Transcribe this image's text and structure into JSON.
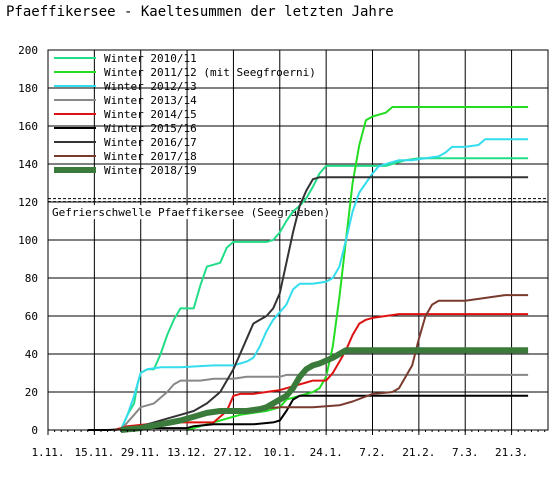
{
  "chart_data": {
    "type": "line",
    "title": "Pfaeffikersee - Kaeltesummen der letzten Jahre",
    "xlabel": "",
    "ylabel": "",
    "ylim": [
      0,
      200
    ],
    "y_ticks": [
      0,
      20,
      40,
      60,
      80,
      100,
      120,
      140,
      160,
      180,
      200
    ],
    "x_range": [
      0,
      151
    ],
    "x_ticks": [
      {
        "day": 0,
        "label": "1.11."
      },
      {
        "day": 14,
        "label": "15.11."
      },
      {
        "day": 28,
        "label": "29.11."
      },
      {
        "day": 42,
        "label": "13.12."
      },
      {
        "day": 56,
        "label": "27.12."
      },
      {
        "day": 70,
        "label": "10.1."
      },
      {
        "day": 84,
        "label": "24.1."
      },
      {
        "day": 98,
        "label": "7.2."
      },
      {
        "day": 112,
        "label": "21.2."
      },
      {
        "day": 126,
        "label": "7.3."
      },
      {
        "day": 140,
        "label": "21.3."
      }
    ],
    "grid": true,
    "legend": "top-left",
    "threshold": {
      "value": 121,
      "label": "Gefrierschwelle Pfaeffikersee (Seegraeben)"
    },
    "series": [
      {
        "name": "Winter 2010/11",
        "color": "#22dd88",
        "width": 2,
        "points": [
          [
            22,
            0
          ],
          [
            24,
            8
          ],
          [
            26,
            14
          ],
          [
            27,
            24
          ],
          [
            28,
            30
          ],
          [
            30,
            32
          ],
          [
            32,
            32
          ],
          [
            34,
            40
          ],
          [
            36,
            50
          ],
          [
            38,
            58
          ],
          [
            40,
            64
          ],
          [
            44,
            64
          ],
          [
            46,
            76
          ],
          [
            48,
            86
          ],
          [
            50,
            87
          ],
          [
            52,
            88
          ],
          [
            54,
            96
          ],
          [
            56,
            99
          ],
          [
            58,
            99
          ],
          [
            66,
            99
          ],
          [
            68,
            100
          ],
          [
            70,
            104
          ],
          [
            72,
            110
          ],
          [
            74,
            115
          ],
          [
            76,
            118
          ],
          [
            78,
            122
          ],
          [
            80,
            128
          ],
          [
            82,
            135
          ],
          [
            84,
            139
          ],
          [
            90,
            139
          ],
          [
            96,
            139
          ],
          [
            102,
            139
          ],
          [
            106,
            141
          ],
          [
            108,
            142
          ],
          [
            112,
            143
          ],
          [
            120,
            143
          ],
          [
            130,
            143
          ],
          [
            145,
            143
          ]
        ]
      },
      {
        "name": "Winter 2011/12 (mit Seegfroerni)",
        "color": "#22dd22",
        "width": 2,
        "points": [
          [
            42,
            0
          ],
          [
            46,
            2
          ],
          [
            50,
            4
          ],
          [
            54,
            6
          ],
          [
            58,
            8
          ],
          [
            62,
            9
          ],
          [
            66,
            10
          ],
          [
            70,
            12
          ],
          [
            72,
            16
          ],
          [
            74,
            17
          ],
          [
            78,
            19
          ],
          [
            80,
            20
          ],
          [
            82,
            22
          ],
          [
            84,
            28
          ],
          [
            86,
            44
          ],
          [
            88,
            70
          ],
          [
            90,
            100
          ],
          [
            92,
            130
          ],
          [
            94,
            150
          ],
          [
            96,
            163
          ],
          [
            98,
            165
          ],
          [
            102,
            167
          ],
          [
            104,
            170
          ],
          [
            110,
            170
          ],
          [
            120,
            170
          ],
          [
            130,
            170
          ],
          [
            145,
            170
          ]
        ]
      },
      {
        "name": "Winter 2012/13",
        "color": "#33ddee",
        "width": 2,
        "points": [
          [
            22,
            0
          ],
          [
            24,
            8
          ],
          [
            26,
            18
          ],
          [
            28,
            30
          ],
          [
            30,
            32
          ],
          [
            34,
            33
          ],
          [
            40,
            33
          ],
          [
            50,
            34
          ],
          [
            56,
            34
          ],
          [
            58,
            35
          ],
          [
            60,
            36
          ],
          [
            62,
            38
          ],
          [
            64,
            44
          ],
          [
            66,
            52
          ],
          [
            68,
            58
          ],
          [
            70,
            62
          ],
          [
            72,
            66
          ],
          [
            74,
            74
          ],
          [
            76,
            77
          ],
          [
            80,
            77
          ],
          [
            84,
            78
          ],
          [
            86,
            80
          ],
          [
            88,
            86
          ],
          [
            90,
            100
          ],
          [
            92,
            115
          ],
          [
            94,
            125
          ],
          [
            96,
            130
          ],
          [
            98,
            135
          ],
          [
            100,
            139
          ],
          [
            104,
            141
          ],
          [
            106,
            142
          ],
          [
            110,
            142
          ],
          [
            114,
            143
          ],
          [
            118,
            144
          ],
          [
            120,
            146
          ],
          [
            122,
            149
          ],
          [
            126,
            149
          ],
          [
            130,
            150
          ],
          [
            132,
            153
          ],
          [
            140,
            153
          ],
          [
            145,
            153
          ]
        ]
      },
      {
        "name": "Winter 2013/14",
        "color": "#888888",
        "width": 2,
        "points": [
          [
            22,
            0
          ],
          [
            26,
            8
          ],
          [
            28,
            12
          ],
          [
            32,
            14
          ],
          [
            36,
            20
          ],
          [
            38,
            24
          ],
          [
            40,
            26
          ],
          [
            44,
            26
          ],
          [
            46,
            26
          ],
          [
            50,
            27
          ],
          [
            56,
            27
          ],
          [
            60,
            28
          ],
          [
            70,
            28
          ],
          [
            72,
            29
          ],
          [
            80,
            29
          ],
          [
            90,
            29
          ],
          [
            100,
            29
          ],
          [
            110,
            29
          ],
          [
            120,
            29
          ],
          [
            130,
            29
          ],
          [
            145,
            29
          ]
        ]
      },
      {
        "name": "Winter 2014/15",
        "color": "#dd1111",
        "width": 2,
        "points": [
          [
            20,
            0
          ],
          [
            24,
            2
          ],
          [
            30,
            3
          ],
          [
            40,
            4
          ],
          [
            46,
            4
          ],
          [
            50,
            4
          ],
          [
            54,
            10
          ],
          [
            56,
            18
          ],
          [
            58,
            19
          ],
          [
            62,
            19
          ],
          [
            66,
            20
          ],
          [
            70,
            21
          ],
          [
            72,
            22
          ],
          [
            74,
            23
          ],
          [
            78,
            25
          ],
          [
            80,
            26
          ],
          [
            84,
            26
          ],
          [
            86,
            30
          ],
          [
            88,
            36
          ],
          [
            90,
            42
          ],
          [
            92,
            50
          ],
          [
            94,
            56
          ],
          [
            96,
            58
          ],
          [
            98,
            59
          ],
          [
            102,
            60
          ],
          [
            106,
            61
          ],
          [
            110,
            61
          ],
          [
            120,
            61
          ],
          [
            130,
            61
          ],
          [
            145,
            61
          ]
        ]
      },
      {
        "name": "Winter 2015/16",
        "color": "#000000",
        "width": 2,
        "points": [
          [
            12,
            0
          ],
          [
            18,
            0
          ],
          [
            30,
            1
          ],
          [
            42,
            1
          ],
          [
            44,
            2
          ],
          [
            50,
            3
          ],
          [
            56,
            3
          ],
          [
            62,
            3
          ],
          [
            68,
            4
          ],
          [
            70,
            5
          ],
          [
            72,
            10
          ],
          [
            74,
            16
          ],
          [
            76,
            18
          ],
          [
            80,
            18
          ],
          [
            90,
            18
          ],
          [
            100,
            18
          ],
          [
            110,
            18
          ],
          [
            120,
            18
          ],
          [
            130,
            18
          ],
          [
            145,
            18
          ]
        ]
      },
      {
        "name": "Winter 2016/17",
        "color": "#333333",
        "width": 2,
        "points": [
          [
            22,
            0
          ],
          [
            28,
            2
          ],
          [
            32,
            4
          ],
          [
            36,
            6
          ],
          [
            40,
            8
          ],
          [
            44,
            10
          ],
          [
            48,
            14
          ],
          [
            52,
            20
          ],
          [
            54,
            26
          ],
          [
            56,
            32
          ],
          [
            58,
            40
          ],
          [
            60,
            48
          ],
          [
            62,
            56
          ],
          [
            64,
            58
          ],
          [
            66,
            60
          ],
          [
            68,
            64
          ],
          [
            70,
            72
          ],
          [
            72,
            88
          ],
          [
            74,
            104
          ],
          [
            76,
            118
          ],
          [
            78,
            126
          ],
          [
            80,
            132
          ],
          [
            82,
            133
          ],
          [
            90,
            133
          ],
          [
            100,
            133
          ],
          [
            110,
            133
          ],
          [
            120,
            133
          ],
          [
            130,
            133
          ],
          [
            145,
            133
          ]
        ]
      },
      {
        "name": "Winter 2017/18",
        "color": "#7a3b2e",
        "width": 2,
        "points": [
          [
            20,
            0
          ],
          [
            26,
            1
          ],
          [
            32,
            3
          ],
          [
            38,
            5
          ],
          [
            44,
            7
          ],
          [
            50,
            10
          ],
          [
            56,
            11
          ],
          [
            62,
            11
          ],
          [
            70,
            12
          ],
          [
            80,
            12
          ],
          [
            88,
            13
          ],
          [
            92,
            15
          ],
          [
            98,
            19
          ],
          [
            104,
            20
          ],
          [
            106,
            22
          ],
          [
            108,
            28
          ],
          [
            110,
            34
          ],
          [
            112,
            48
          ],
          [
            114,
            60
          ],
          [
            116,
            66
          ],
          [
            118,
            68
          ],
          [
            122,
            68
          ],
          [
            126,
            68
          ],
          [
            130,
            69
          ],
          [
            134,
            70
          ],
          [
            138,
            71
          ],
          [
            145,
            71
          ]
        ]
      },
      {
        "name": "Winter 2018/19",
        "color": "#3a7a3a",
        "width": 6,
        "points": [
          [
            22,
            0
          ],
          [
            28,
            1
          ],
          [
            34,
            3
          ],
          [
            40,
            5
          ],
          [
            44,
            7
          ],
          [
            48,
            9
          ],
          [
            52,
            10
          ],
          [
            56,
            10
          ],
          [
            60,
            10
          ],
          [
            64,
            11
          ],
          [
            66,
            12
          ],
          [
            68,
            14
          ],
          [
            72,
            18
          ],
          [
            74,
            22
          ],
          [
            76,
            28
          ],
          [
            78,
            32
          ],
          [
            80,
            34
          ],
          [
            82,
            35
          ],
          [
            86,
            38
          ],
          [
            88,
            40
          ],
          [
            90,
            42
          ],
          [
            100,
            42
          ],
          [
            110,
            42
          ],
          [
            120,
            42
          ],
          [
            130,
            42
          ],
          [
            145,
            42
          ]
        ]
      }
    ]
  }
}
